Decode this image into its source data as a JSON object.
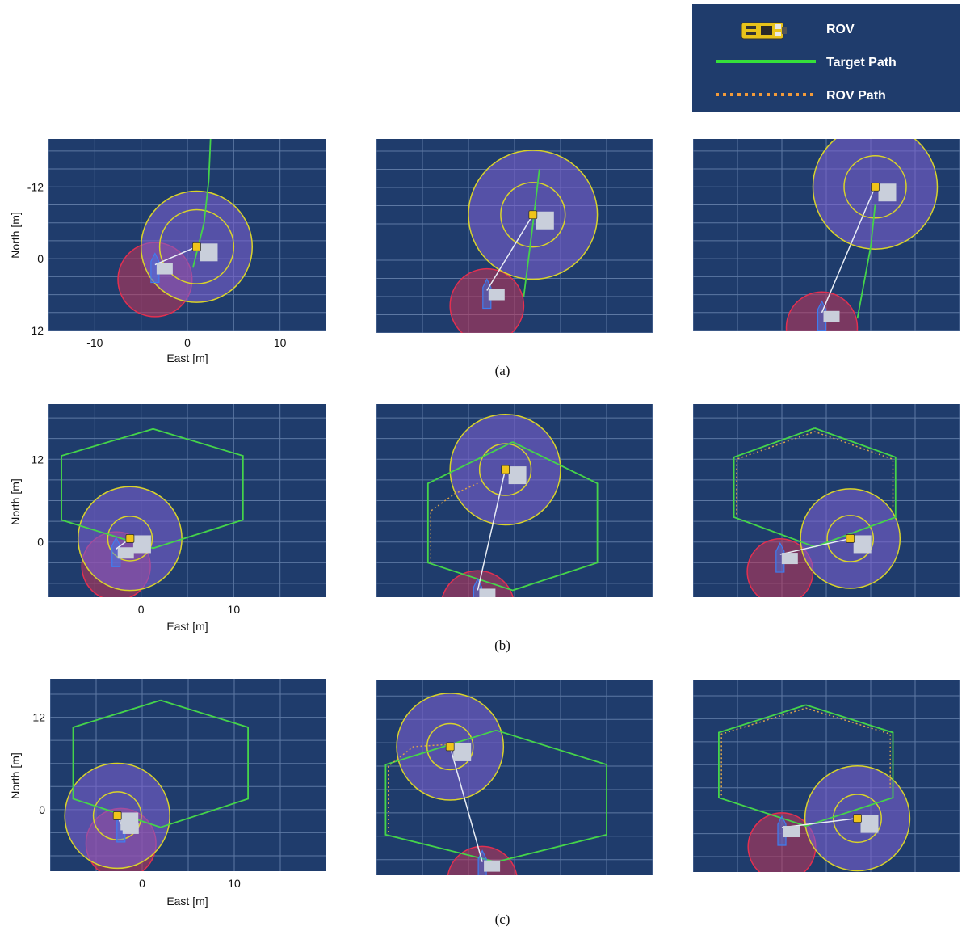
{
  "legend": {
    "items": [
      {
        "label": "ROV",
        "kind": "rov-icon"
      },
      {
        "label": "Target Path",
        "kind": "solid-line",
        "color": "#35e03a"
      },
      {
        "label": "ROV Path",
        "kind": "dotted-line",
        "color": "#f39b3a"
      }
    ]
  },
  "captions": [
    "(a)",
    "(b)",
    "(c)"
  ],
  "axis_labels": {
    "x": "East [m]",
    "y": "North [m]"
  },
  "colors": {
    "panel_bg": "#1f3c6c",
    "grid": "#5d78a3",
    "target_path": "#45d44a",
    "rov_path": "#d9a24a",
    "ring": "#d9d32a",
    "rov_zone": "#7a5fcf",
    "vessel_zone": "#c4345a",
    "vessel": "#3e7df0",
    "link": "#e8edf5",
    "legend_bg": "#1f3c6c"
  },
  "chart_data": [
    {
      "type": "scatter",
      "row": 0,
      "col": 0,
      "xlim": [
        -15,
        15
      ],
      "ylim": [
        -12,
        20
      ],
      "xticks": [
        -10,
        0,
        10
      ],
      "yticks": [
        -12,
        0,
        12
      ],
      "show_axes": true,
      "y_tick_labels": [
        "12",
        "0",
        "-12"
      ],
      "x_tick_labels": [
        "-10",
        "0",
        "10"
      ],
      "target_path": [
        [
          2.5,
          20
        ],
        [
          2.3,
          13
        ],
        [
          1.8,
          6
        ],
        [
          0.6,
          -1.5
        ]
      ],
      "rov_path": [],
      "rov": [
        1,
        2
      ],
      "vessel": [
        -3.5,
        -1
      ],
      "rings": [
        4,
        6
      ],
      "vessel_zone": 4
    },
    {
      "type": "scatter",
      "row": 0,
      "col": 1,
      "xlim": [
        -15,
        15
      ],
      "ylim": [
        -12,
        20
      ],
      "show_axes": false,
      "target_path": [
        [
          2.7,
          15
        ],
        [
          2,
          6
        ],
        [
          1,
          -6
        ]
      ],
      "rov_path": [],
      "rov": [
        2,
        7.5
      ],
      "vessel": [
        -3,
        -5
      ],
      "rings": [
        3.5,
        7
      ],
      "vessel_zone": 4
    },
    {
      "type": "scatter",
      "row": 0,
      "col": 2,
      "xlim": [
        -15,
        15
      ],
      "ylim": [
        -12,
        20
      ],
      "show_axes": false,
      "target_path": [
        [
          5.5,
          9
        ],
        [
          5,
          2
        ],
        [
          3.5,
          -10
        ]
      ],
      "rov_path": [],
      "rov": [
        5.5,
        12
      ],
      "vessel": [
        -0.5,
        -9
      ],
      "rings": [
        3.5,
        7
      ],
      "vessel_zone": 4
    },
    {
      "type": "scatter",
      "row": 1,
      "col": 0,
      "xlim": [
        -10,
        20
      ],
      "ylim": [
        -8,
        20
      ],
      "show_axes": true,
      "y_tick_labels": [
        "12",
        "0"
      ],
      "x_tick_labels": [
        "0",
        "10"
      ],
      "yticks": [
        12,
        0
      ],
      "xticks": [
        0,
        10
      ],
      "target_path": [
        [
          1.3,
          16.4
        ],
        [
          11,
          12.5
        ],
        [
          11,
          3.2
        ],
        [
          1.3,
          -0.9
        ],
        [
          -8.6,
          3.2
        ],
        [
          -8.6,
          12.5
        ],
        [
          1.3,
          16.4
        ]
      ],
      "rov_path": [],
      "rov": [
        -1.2,
        0.5
      ],
      "vessel": [
        -2.7,
        -1
      ],
      "rings": [
        2.4,
        5.6
      ],
      "vessel_zone": 3.7
    },
    {
      "type": "scatter",
      "row": 1,
      "col": 1,
      "xlim": [
        -10,
        20
      ],
      "ylim": [
        -8,
        20
      ],
      "show_axes": false,
      "target_path": [
        [
          4.8,
          14.5
        ],
        [
          14,
          8.5
        ],
        [
          14,
          -3
        ],
        [
          4.8,
          -7
        ],
        [
          -4.4,
          -3
        ],
        [
          -4.4,
          8.5
        ],
        [
          4.8,
          14.5
        ]
      ],
      "rov_path": [
        [
          -4.1,
          -3
        ],
        [
          -4.1,
          4.5
        ],
        [
          -1.5,
          7
        ],
        [
          1,
          8.5
        ]
      ],
      "rov": [
        4,
        10.5
      ],
      "vessel": [
        1,
        -7
      ],
      "rings": [
        2.8,
        6
      ],
      "vessel_zone": 4
    },
    {
      "type": "scatter",
      "row": 1,
      "col": 2,
      "xlim": [
        -10,
        20
      ],
      "ylim": [
        -8,
        20
      ],
      "show_axes": false,
      "target_path": [
        [
          3.7,
          16.5
        ],
        [
          12.8,
          12.3
        ],
        [
          12.8,
          3.6
        ],
        [
          3.7,
          -0.7
        ],
        [
          -5.4,
          3.6
        ],
        [
          -5.4,
          12.3
        ],
        [
          3.7,
          16.5
        ]
      ],
      "rov_path": [
        [
          -5.1,
          4
        ],
        [
          -5.1,
          12
        ],
        [
          3.7,
          16
        ],
        [
          12.5,
          12
        ],
        [
          12.5,
          5
        ]
      ],
      "rov": [
        7.7,
        0.5
      ],
      "vessel": [
        -0.2,
        -1.8
      ],
      "rings": [
        2.6,
        5.6
      ],
      "vessel_zone": 3.7
    },
    {
      "type": "scatter",
      "row": 2,
      "col": 0,
      "xlim": [
        -10,
        20
      ],
      "ylim": [
        -8,
        17
      ],
      "show_axes": true,
      "y_tick_labels": [
        "12",
        "0"
      ],
      "x_tick_labels": [
        "0",
        "10"
      ],
      "yticks": [
        12,
        0
      ],
      "xticks": [
        0,
        10
      ],
      "target_path": [
        [
          2,
          14.2
        ],
        [
          11.5,
          10.7
        ],
        [
          11.5,
          1.4
        ],
        [
          2,
          -2.3
        ],
        [
          -7.5,
          1.4
        ],
        [
          -7.5,
          10.7
        ],
        [
          2,
          14.2
        ]
      ],
      "rov_path": [],
      "rov": [
        -2.7,
        -0.8
      ],
      "vessel": [
        -2.3,
        -1.9
      ],
      "rings": [
        2.6,
        5.7
      ],
      "vessel_zone": 3.8
    },
    {
      "type": "scatter",
      "row": 2,
      "col": 1,
      "xlim": [
        -10,
        20
      ],
      "ylim": [
        -8,
        17
      ],
      "show_axes": false,
      "target_path": [
        [
          3,
          10.6
        ],
        [
          15,
          6.2
        ],
        [
          15,
          -2.8
        ],
        [
          3,
          -6.3
        ],
        [
          -9,
          -2.8
        ],
        [
          -9,
          6.2
        ],
        [
          3,
          10.6
        ]
      ],
      "rov_path": [
        [
          -8.7,
          -2.5
        ],
        [
          -8.7,
          6
        ],
        [
          -6,
          8.5
        ],
        [
          -2,
          8.8
        ]
      ],
      "rov": [
        -2,
        8.5
      ],
      "vessel": [
        1.5,
        -6.3
      ],
      "rings": [
        2.5,
        5.8
      ],
      "vessel_zone": 3.8
    },
    {
      "type": "scatter",
      "row": 2,
      "col": 2,
      "xlim": [
        -10,
        20
      ],
      "ylim": [
        -8,
        17
      ],
      "show_axes": false,
      "target_path": [
        [
          2.7,
          13.8
        ],
        [
          12.5,
          10.2
        ],
        [
          12.5,
          1.7
        ],
        [
          2.7,
          -2
        ],
        [
          -7.1,
          1.7
        ],
        [
          -7.1,
          10.2
        ],
        [
          2.7,
          13.8
        ]
      ],
      "rov_path": [
        [
          -6.8,
          2
        ],
        [
          -6.8,
          10
        ],
        [
          2.7,
          13.4
        ],
        [
          12.2,
          10
        ],
        [
          12.2,
          3
        ]
      ],
      "rov": [
        8.5,
        -1
      ],
      "vessel": [
        0,
        -2.2
      ],
      "rings": [
        2.7,
        5.9
      ],
      "vessel_zone": 3.8
    }
  ]
}
